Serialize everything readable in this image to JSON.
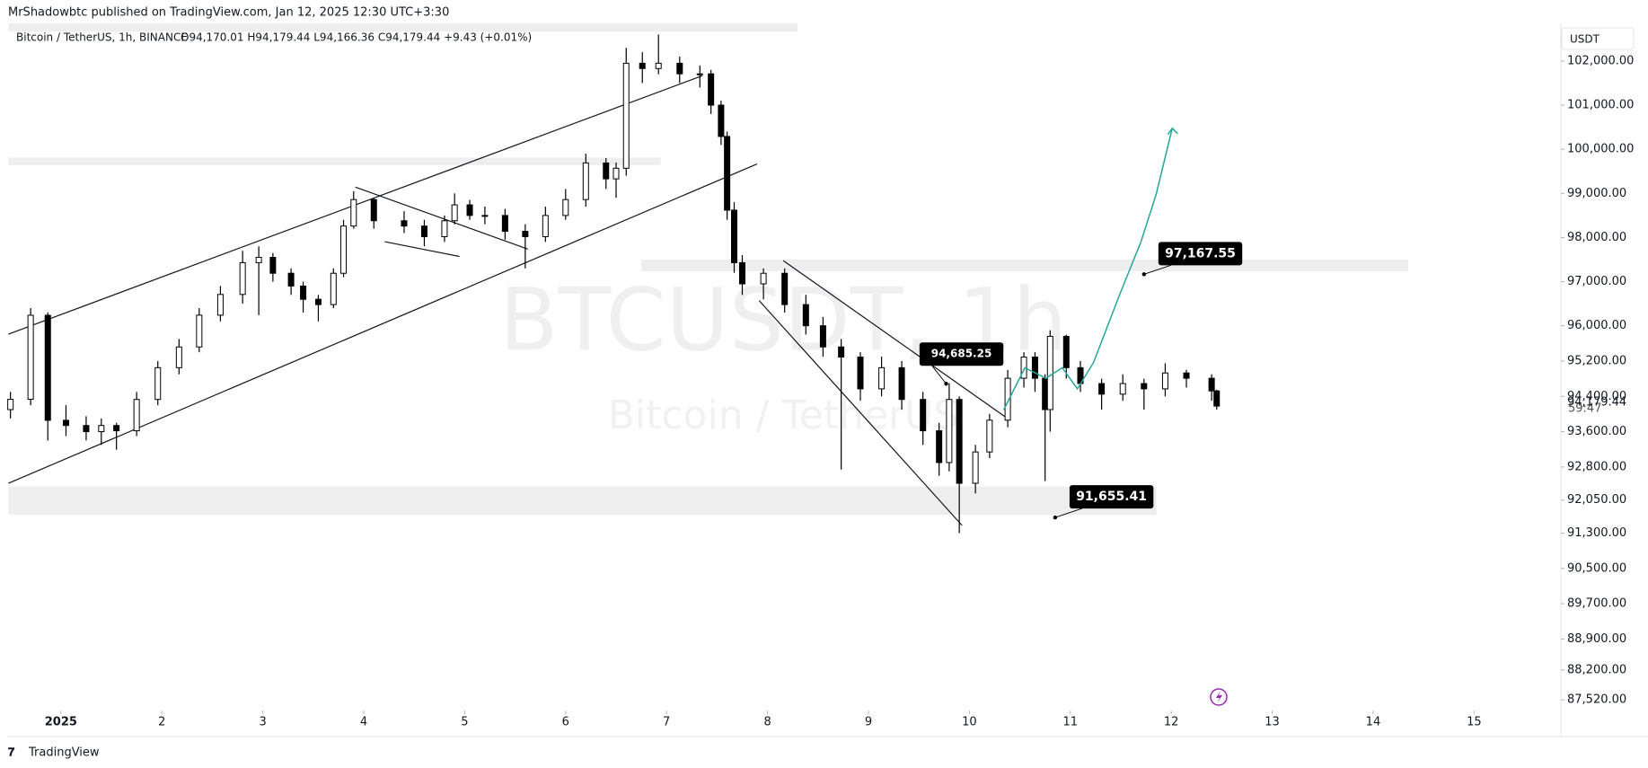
{
  "header": {
    "text": "MrShadowbtc published on TradingView.com, Jan 12, 2025 12:30 UTC+3:30"
  },
  "legend": {
    "symbol": "Bitcoin / TetherUS, 1h, BINANCE",
    "ohlc": "O94,170.01 H94,179.44 L94,166.36 C94,179.44 +9.43 (+0.01%)"
  },
  "watermark": {
    "ticker": "BTCUSDT, 1h",
    "name": "Bitcoin / TetherUS"
  },
  "currency_button": "USDT",
  "countdown": "59:47",
  "footer": "TradingView",
  "chart_data": {
    "type": "candlestick",
    "xlim": [
      0.48,
      15.86
    ],
    "ylim": [
      87280,
      102860
    ],
    "xticks": [
      {
        "value": 1,
        "label": "2025"
      },
      2,
      3,
      4,
      5,
      6,
      7,
      8,
      9,
      10,
      11,
      12,
      13,
      14,
      15
    ],
    "yticks": [
      {
        "value": 102000,
        "label": "102,000.00"
      },
      {
        "value": 101000,
        "label": "101,000.00"
      },
      {
        "value": 100000,
        "label": "100,000.00"
      },
      {
        "value": 99000,
        "label": "99,000.00"
      },
      {
        "value": 98000,
        "label": "98,000.00"
      },
      {
        "value": 97000,
        "label": "97,000.00"
      },
      {
        "value": 96000,
        "label": "96,000.00"
      },
      {
        "value": 95200,
        "label": "95,200.00"
      },
      {
        "value": 94400,
        "label": "94,400.00"
      },
      {
        "value": 93600,
        "label": "93,600.00"
      },
      {
        "value": 92800,
        "label": "92,800.00"
      },
      {
        "value": 92050,
        "label": "92,050.00"
      },
      {
        "value": 91300,
        "label": "91,300.00"
      },
      {
        "value": 90500,
        "label": "90,500.00"
      },
      {
        "value": 89700,
        "label": "89,700.00"
      },
      {
        "value": 88900,
        "label": "88,900.00"
      },
      {
        "value": 88200,
        "label": "88,200.00"
      },
      {
        "value": 87520,
        "label": "87,520.00"
      }
    ],
    "last_price": {
      "value": 94179.44,
      "label": "94,179.44"
    },
    "up_color": "#ffffff",
    "down_color": "#000000",
    "candles": [
      [
        0.5,
        94100,
        94500,
        93900,
        94333
      ],
      [
        0.7,
        94333,
        96400,
        94200,
        96238
      ],
      [
        0.87,
        96238,
        96300,
        93400,
        93857
      ],
      [
        1.05,
        93857,
        94200,
        93500,
        93740
      ],
      [
        1.25,
        93740,
        93950,
        93400,
        93600
      ],
      [
        1.4,
        93600,
        93900,
        93300,
        93740
      ],
      [
        1.55,
        93740,
        93800,
        93190,
        93620
      ],
      [
        1.75,
        93620,
        94500,
        93500,
        94330
      ],
      [
        1.96,
        94330,
        95200,
        94200,
        95050
      ],
      [
        2.17,
        95050,
        95700,
        94900,
        95520
      ],
      [
        2.37,
        95520,
        96400,
        95400,
        96240
      ],
      [
        2.58,
        96240,
        96900,
        96100,
        96710
      ],
      [
        2.8,
        96710,
        97700,
        96500,
        97430
      ],
      [
        2.96,
        97430,
        97800,
        96240,
        97550
      ],
      [
        3.1,
        97550,
        97650,
        97000,
        97190
      ],
      [
        3.28,
        97190,
        97300,
        96700,
        96900
      ],
      [
        3.4,
        96900,
        97000,
        96300,
        96600
      ],
      [
        3.55,
        96600,
        96700,
        96100,
        96480
      ],
      [
        3.7,
        96480,
        97300,
        96400,
        97190
      ],
      [
        3.8,
        97190,
        98400,
        97100,
        98260
      ],
      [
        3.9,
        98260,
        99050,
        98200,
        98860
      ],
      [
        4.1,
        98860,
        98900,
        98200,
        98380
      ],
      [
        4.4,
        98380,
        98600,
        98100,
        98260
      ],
      [
        4.6,
        98260,
        98400,
        97800,
        98020
      ],
      [
        4.8,
        98020,
        98500,
        97900,
        98380
      ],
      [
        4.9,
        98380,
        99000,
        98300,
        98740
      ],
      [
        5.05,
        98740,
        98850,
        98400,
        98500
      ],
      [
        5.2,
        98500,
        98700,
        98300,
        98500
      ],
      [
        5.4,
        98500,
        98650,
        97950,
        98140
      ],
      [
        5.6,
        98140,
        98300,
        97300,
        98020
      ],
      [
        5.8,
        98020,
        98700,
        97900,
        98500
      ],
      [
        6.0,
        98500,
        99100,
        98400,
        98860
      ],
      [
        6.2,
        98860,
        99900,
        98700,
        99690
      ],
      [
        6.4,
        99690,
        99800,
        99100,
        99330
      ],
      [
        6.5,
        99330,
        99700,
        98900,
        99570
      ],
      [
        6.6,
        99570,
        102300,
        99400,
        101950
      ],
      [
        6.76,
        101950,
        102200,
        101500,
        101830
      ],
      [
        6.92,
        101830,
        102600,
        101700,
        101950
      ],
      [
        7.13,
        101950,
        102100,
        101500,
        101710
      ],
      [
        7.33,
        101710,
        101900,
        101400,
        101710
      ],
      [
        7.44,
        101710,
        101800,
        100800,
        101000
      ],
      [
        7.54,
        101000,
        101100,
        100100,
        100290
      ],
      [
        7.6,
        100290,
        100400,
        98400,
        98620
      ],
      [
        7.67,
        98620,
        98800,
        97200,
        97430
      ],
      [
        7.75,
        97430,
        97600,
        96700,
        96950
      ],
      [
        7.96,
        96950,
        97300,
        96600,
        97190
      ],
      [
        8.17,
        97190,
        97300,
        96300,
        96480
      ],
      [
        8.38,
        96480,
        96700,
        95800,
        96000
      ],
      [
        8.55,
        96000,
        96200,
        95300,
        95520
      ],
      [
        8.73,
        95520,
        95700,
        92740,
        95290
      ],
      [
        8.92,
        95290,
        95400,
        94300,
        94570
      ],
      [
        9.13,
        94570,
        95300,
        94400,
        95050
      ],
      [
        9.33,
        95050,
        95200,
        94100,
        94330
      ],
      [
        9.54,
        94330,
        94500,
        93300,
        93620
      ],
      [
        9.7,
        93620,
        93800,
        92600,
        92900
      ],
      [
        9.8,
        92900,
        94700,
        92700,
        94330
      ],
      [
        9.9,
        94330,
        94400,
        91300,
        92430
      ],
      [
        10.06,
        92430,
        93300,
        92200,
        93140
      ],
      [
        10.2,
        93140,
        94000,
        93000,
        93860
      ],
      [
        10.38,
        93860,
        95000,
        93700,
        94810
      ],
      [
        10.54,
        94810,
        95400,
        94600,
        95290
      ],
      [
        10.65,
        95290,
        95400,
        94500,
        94810
      ],
      [
        10.75,
        94810,
        94900,
        92480,
        94100
      ],
      [
        10.8,
        94100,
        95900,
        93600,
        95760
      ],
      [
        10.96,
        95760,
        95800,
        94800,
        95050
      ],
      [
        11.1,
        95050,
        95200,
        94500,
        94690
      ],
      [
        11.31,
        94690,
        94800,
        94100,
        94450
      ],
      [
        11.52,
        94450,
        94900,
        94300,
        94690
      ],
      [
        11.73,
        94690,
        94800,
        94100,
        94570
      ],
      [
        11.94,
        94570,
        95150,
        94400,
        94930
      ],
      [
        12.15,
        94930,
        95000,
        94600,
        94810
      ],
      [
        12.4,
        94810,
        94900,
        94300,
        94524
      ],
      [
        12.45,
        94524,
        94550,
        94100,
        94179.44
      ]
    ],
    "zones": [
      [
        0.479,
        8.3,
        102857,
        102667
      ],
      [
        0.479,
        6.94,
        99810,
        99643
      ],
      [
        6.75,
        14.35,
        97500,
        97238
      ],
      [
        0.479,
        11.854,
        92357,
        91714
      ]
    ],
    "zone_color": "#eeeeef",
    "trendlines": [
      [
        0.479,
        95810,
        7.354,
        101667
      ],
      [
        0.479,
        92429,
        7.896,
        99667
      ],
      [
        3.917,
        99143,
        5.625,
        97738
      ],
      [
        4.208,
        97905,
        4.948,
        97571
      ],
      [
        8.156,
        97476,
        10.375,
        93905
      ],
      [
        7.917,
        96571,
        9.927,
        91476
      ]
    ],
    "projection": {
      "color": "#26a69a",
      "x": [
        10.34,
        10.55,
        10.76,
        10.92,
        11.07,
        11.23,
        11.49,
        11.7,
        11.85,
        12.01
      ],
      "y": [
        94095,
        95048,
        94810,
        95048,
        94571,
        95167,
        96714,
        97905,
        98976,
        100476
      ]
    },
    "annotations": [
      {
        "x": 9.77,
        "value": 94685.25,
        "label": "94,685.25"
      },
      {
        "x": 11.73,
        "value": 97167.55,
        "label": "97,167.55"
      },
      {
        "x": 10.85,
        "value": 91655.41,
        "label": "91,655.41"
      }
    ]
  }
}
